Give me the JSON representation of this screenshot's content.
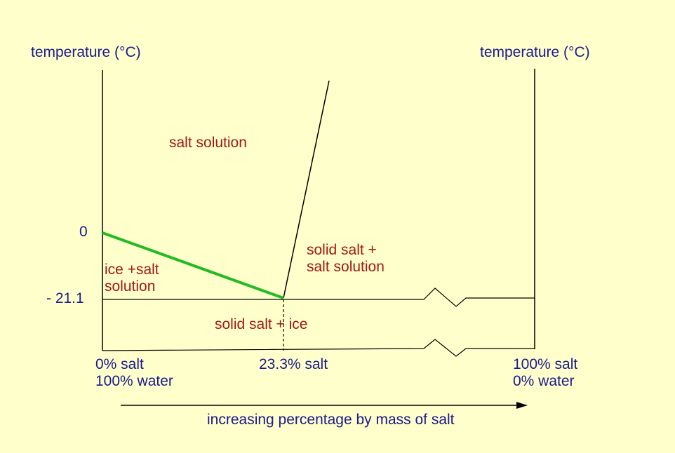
{
  "colors": {
    "background": "#ffffcc",
    "axis_label": "#1a1a8c",
    "region_label": "#a01818",
    "ice_line": "#22bb22",
    "line": "#000000"
  },
  "axes": {
    "left_label": "temperature (°C)",
    "right_label": "temperature (°C)",
    "tick_zero": "0",
    "tick_eutectic": "- 21.1",
    "x_left": "0% salt\n100% water",
    "x_mid": "23.3% salt",
    "x_right": "100% salt\n0% water",
    "x_arrow_caption": "increasing percentage by mass of salt"
  },
  "regions": {
    "salt_solution": "salt solution",
    "solid_salt_solution": "solid salt +\nsalt solution",
    "ice_salt_solution": "ice +salt\nsolution",
    "solid_salt_ice": "solid salt + ice"
  }
}
